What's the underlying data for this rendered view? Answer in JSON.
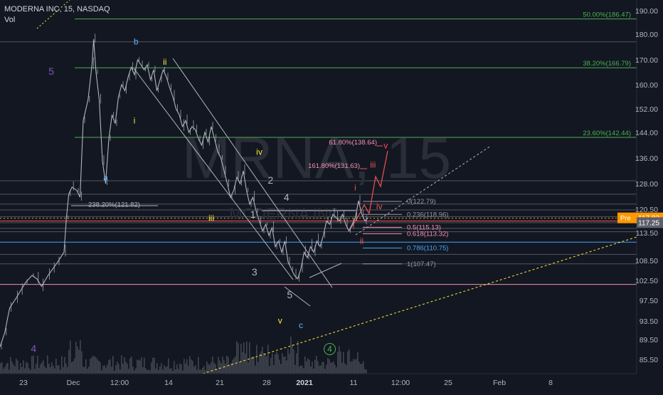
{
  "header": {
    "symbol_line": "MODERNA INC, 15, NASDAQ",
    "indicator": "Vol"
  },
  "watermark": {
    "main": "MRNA, 15",
    "sub": "MODERNA INC"
  },
  "colors": {
    "background": "#131722",
    "price": "#b2b5be",
    "volume": "#4a4d57",
    "fib_green": "#4caf50",
    "fib_pink": "#f48fb1",
    "fib_blue": "#42a5f5",
    "fib_grey": "#9598a1",
    "red": "#ef5350",
    "yellow": "#ffeb3b",
    "wave_blue": "#64b5f6",
    "wave_purple": "#7e57c2",
    "wave_grey": "#b2b5be",
    "badge": "#ff9800"
  },
  "chart_data": {
    "type": "line",
    "x_ticks": [
      "23",
      "Dec",
      "12:00",
      "14",
      "21",
      "28",
      "2021",
      "11",
      "12:00",
      "25",
      "Feb",
      "8"
    ],
    "y_ticks": [
      85.5,
      89.5,
      93.5,
      97.5,
      102.5,
      108.5,
      113.5,
      120.5,
      128.0,
      136.0,
      144.0,
      152.0,
      160.0,
      170.0,
      180.0,
      190.0
    ],
    "ylim": [
      82,
      194
    ],
    "last_price": {
      "badge": "Pre",
      "value": "117.82",
      "current": "117.25"
    },
    "price_path": [
      [
        0,
        88
      ],
      [
        0.3,
        91
      ],
      [
        0.6,
        96
      ],
      [
        1.0,
        98
      ],
      [
        1.3,
        100
      ],
      [
        1.6,
        102
      ],
      [
        2.0,
        104
      ],
      [
        2.3,
        103
      ],
      [
        2.6,
        101
      ],
      [
        3.0,
        104
      ],
      [
        3.3,
        106
      ],
      [
        3.6,
        108
      ],
      [
        4.0,
        110
      ],
      [
        4.15,
        118
      ],
      [
        4.3,
        125
      ],
      [
        4.5,
        127
      ],
      [
        4.8,
        126
      ],
      [
        5.0,
        124
      ],
      [
        5.2,
        148
      ],
      [
        5.5,
        155
      ],
      [
        5.75,
        168
      ],
      [
        5.85,
        178
      ],
      [
        6.0,
        165
      ],
      [
        6.2,
        155
      ],
      [
        6.4,
        135
      ],
      [
        6.6,
        128
      ],
      [
        6.8,
        142
      ],
      [
        7.0,
        150
      ],
      [
        7.2,
        147
      ],
      [
        7.4,
        156
      ],
      [
        7.6,
        160
      ],
      [
        7.8,
        158
      ],
      [
        8.0,
        163
      ],
      [
        8.2,
        167
      ],
      [
        8.4,
        164
      ],
      [
        8.6,
        170
      ],
      [
        8.8,
        168
      ],
      [
        9.0,
        166
      ],
      [
        9.2,
        168
      ],
      [
        9.4,
        162
      ],
      [
        9.6,
        166
      ],
      [
        9.8,
        158
      ],
      [
        10.0,
        162
      ],
      [
        10.2,
        166
      ],
      [
        10.4,
        163
      ],
      [
        10.6,
        159
      ],
      [
        10.8,
        156
      ],
      [
        11.0,
        152
      ],
      [
        11.2,
        150
      ],
      [
        11.4,
        146
      ],
      [
        11.6,
        148
      ],
      [
        11.8,
        144
      ],
      [
        12.0,
        146
      ],
      [
        12.2,
        145
      ],
      [
        12.4,
        142
      ],
      [
        12.6,
        140
      ],
      [
        12.8,
        144
      ],
      [
        13.0,
        141
      ],
      [
        13.2,
        146
      ],
      [
        13.4,
        142
      ],
      [
        13.6,
        138
      ],
      [
        13.8,
        136
      ],
      [
        14.0,
        132
      ],
      [
        14.2,
        128
      ],
      [
        14.4,
        124
      ],
      [
        14.6,
        126
      ],
      [
        14.8,
        130
      ],
      [
        15.0,
        128
      ],
      [
        15.2,
        132
      ],
      [
        15.4,
        126
      ],
      [
        15.6,
        122
      ],
      [
        15.8,
        124
      ],
      [
        16.0,
        120
      ],
      [
        16.2,
        117
      ],
      [
        16.4,
        114
      ],
      [
        16.6,
        116
      ],
      [
        16.8,
        113
      ],
      [
        17.0,
        115
      ],
      [
        17.2,
        111
      ],
      [
        17.4,
        112
      ],
      [
        17.6,
        110
      ],
      [
        17.8,
        112
      ],
      [
        18.0,
        108
      ],
      [
        18.2,
        106
      ],
      [
        18.4,
        104
      ],
      [
        18.6,
        103
      ],
      [
        18.8,
        106
      ],
      [
        19.0,
        110
      ],
      [
        19.2,
        109
      ],
      [
        19.4,
        111
      ],
      [
        19.6,
        110
      ],
      [
        19.8,
        112
      ],
      [
        20.0,
        111
      ],
      [
        20.2,
        113
      ],
      [
        20.4,
        117
      ],
      [
        20.6,
        116
      ],
      [
        20.8,
        119
      ],
      [
        21.0,
        118
      ],
      [
        21.2,
        117
      ],
      [
        21.4,
        119
      ],
      [
        21.6,
        116
      ],
      [
        21.8,
        114
      ],
      [
        22.0,
        116
      ],
      [
        22.2,
        118
      ],
      [
        22.4,
        123
      ],
      [
        22.6,
        119
      ],
      [
        22.8,
        117
      ],
      [
        23.0,
        118
      ]
    ],
    "fib_levels": [
      {
        "label": "50.00%(186.47)",
        "value": 186.47,
        "color": "green",
        "align": "right"
      },
      {
        "label": "38.20%(166.79)",
        "value": 166.79,
        "color": "green",
        "align": "right"
      },
      {
        "label": "23.60%(142.44)",
        "value": 142.44,
        "color": "green",
        "align": "right"
      },
      {
        "label": "0(122.79)",
        "value": 122.79,
        "color": "grey",
        "align": "inner"
      },
      {
        "label": "0.236(118.96)",
        "value": 118.96,
        "color": "grey",
        "align": "inner"
      },
      {
        "label": "0.5(115.13)",
        "value": 115.13,
        "color": "pink",
        "align": "inner"
      },
      {
        "label": "0.618(113.32)",
        "value": 113.32,
        "color": "pink",
        "align": "inner"
      },
      {
        "label": "0.786(110.75)",
        "value": 110.75,
        "color": "blue",
        "align": "inner"
      },
      {
        "label": "1(107.47)",
        "value": 107.47,
        "color": "grey",
        "align": "inner"
      }
    ],
    "projection_labels": [
      {
        "label": "61.80%(138.64)",
        "value": 138.64
      },
      {
        "label": "161.80%(131.63)",
        "value": 131.63
      }
    ],
    "side_label": {
      "label": "238.20%(121.82)",
      "value": 121.82
    },
    "wave_labels": [
      {
        "text": "5",
        "color": "purple",
        "x": 3.2,
        "y": 164
      },
      {
        "text": "b",
        "color": "blue",
        "x": 8.5,
        "y": 176
      },
      {
        "text": "ii",
        "color": "yellow",
        "x": 10.3,
        "y": 168
      },
      {
        "text": "i",
        "color": "yellow",
        "x": 8.4,
        "y": 147
      },
      {
        "text": "a",
        "color": "blue",
        "x": 6.6,
        "y": 129
      },
      {
        "text": "iv",
        "color": "yellow",
        "x": 16.2,
        "y": 137
      },
      {
        "text": "2",
        "color": "grey",
        "x": 16.9,
        "y": 128
      },
      {
        "text": "4",
        "color": "grey",
        "x": 17.9,
        "y": 123
      },
      {
        "text": "1",
        "color": "grey",
        "x": 15.8,
        "y": 118
      },
      {
        "text": "iii",
        "color": "yellow",
        "x": 13.2,
        "y": 117
      },
      {
        "text": "3",
        "color": "grey",
        "x": 15.9,
        "y": 104
      },
      {
        "text": "5",
        "color": "grey",
        "x": 18.1,
        "y": 98
      },
      {
        "text": "v",
        "color": "yellow",
        "x": 17.5,
        "y": 93
      },
      {
        "text": "c",
        "color": "blue",
        "x": 18.8,
        "y": 92
      },
      {
        "text": "4",
        "color": "purple",
        "x": 2.1,
        "y": 87
      },
      {
        "text": "4",
        "color": "green",
        "x": 20.6,
        "y": 87,
        "circled": true
      },
      {
        "text": "i",
        "color": "red",
        "x": 22.2,
        "y": 126
      },
      {
        "text": "iii",
        "color": "red",
        "x": 23.3,
        "y": 133
      },
      {
        "text": "iv",
        "color": "red",
        "x": 23.7,
        "y": 120.5
      },
      {
        "text": "v",
        "color": "red",
        "x": 24.1,
        "y": 139
      },
      {
        "text": "ii",
        "color": "red",
        "x": 22.6,
        "y": 111.5
      }
    ]
  }
}
